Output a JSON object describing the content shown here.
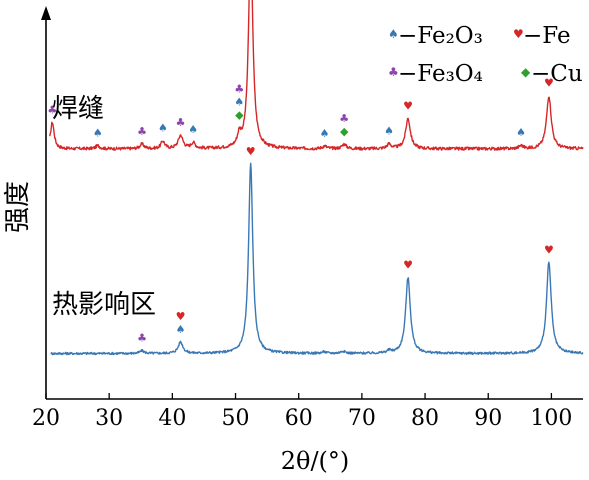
{
  "chart_data": {
    "type": "line",
    "xlabel": "2θ/(°)",
    "ylabel": "强度",
    "xlim": [
      20,
      105
    ],
    "xticks": [
      20,
      30,
      40,
      50,
      60,
      70,
      80,
      90,
      100
    ],
    "legend": {
      "placement": "top-right",
      "entries": [
        {
          "phase": "fe2o3",
          "label": "−Fe₂O₃"
        },
        {
          "phase": "fe",
          "label": "−Fe"
        },
        {
          "phase": "fe3o4",
          "label": "−Fe₃O₄"
        },
        {
          "phase": "cu",
          "label": "−Cu"
        }
      ]
    },
    "phase_styles": {
      "fe2o3": {
        "symbol": "♠",
        "color": "#3a78b5"
      },
      "fe": {
        "symbol": "♥",
        "color": "#d62728"
      },
      "fe3o4": {
        "symbol": "♣",
        "color": "#8e44ad"
      },
      "cu": {
        "symbol": "◆",
        "color": "#2ca02c"
      }
    },
    "series": [
      {
        "name": "焊缝",
        "color": "#d62728",
        "baseline": 0.66,
        "noise": 0.004,
        "peaks": [
          {
            "x": 21.0,
            "h": 0.07,
            "w": 0.35
          },
          {
            "x": 28.2,
            "h": 0.008,
            "w": 0.4
          },
          {
            "x": 35.2,
            "h": 0.012,
            "w": 0.4
          },
          {
            "x": 38.5,
            "h": 0.02,
            "w": 0.35
          },
          {
            "x": 41.3,
            "h": 0.035,
            "w": 0.45
          },
          {
            "x": 43.3,
            "h": 0.015,
            "w": 0.4
          },
          {
            "x": 50.6,
            "h": 0.03,
            "w": 0.35
          },
          {
            "x": 52.4,
            "h": 0.55,
            "w": 0.4
          },
          {
            "x": 64.1,
            "h": 0.007,
            "w": 0.4
          },
          {
            "x": 67.2,
            "h": 0.012,
            "w": 0.4
          },
          {
            "x": 74.3,
            "h": 0.012,
            "w": 0.4
          },
          {
            "x": 77.3,
            "h": 0.08,
            "w": 0.45
          },
          {
            "x": 95.2,
            "h": 0.008,
            "w": 0.4
          },
          {
            "x": 99.6,
            "h": 0.14,
            "w": 0.45
          }
        ]
      },
      {
        "name": "热影响区",
        "color": "#3a78b5",
        "baseline": 0.12,
        "noise": 0.003,
        "peaks": [
          {
            "x": 35.2,
            "h": 0.007,
            "w": 0.4
          },
          {
            "x": 41.3,
            "h": 0.03,
            "w": 0.45
          },
          {
            "x": 52.4,
            "h": 0.5,
            "w": 0.4
          },
          {
            "x": 64.0,
            "h": 0.004,
            "w": 0.4
          },
          {
            "x": 67.0,
            "h": 0.006,
            "w": 0.4
          },
          {
            "x": 74.3,
            "h": 0.006,
            "w": 0.4
          },
          {
            "x": 77.3,
            "h": 0.2,
            "w": 0.45
          },
          {
            "x": 99.6,
            "h": 0.24,
            "w": 0.45
          }
        ]
      }
    ],
    "annotations": [
      {
        "series": 0,
        "x": 21.0,
        "stack": [
          "fe3o4"
        ]
      },
      {
        "series": 0,
        "x": 28.2,
        "stack": [
          "fe2o3"
        ]
      },
      {
        "series": 0,
        "x": 35.2,
        "stack": [
          "fe3o4"
        ]
      },
      {
        "series": 0,
        "x": 38.5,
        "stack": [
          "fe2o3"
        ]
      },
      {
        "series": 0,
        "x": 41.3,
        "stack": [
          "fe3o4"
        ]
      },
      {
        "series": 0,
        "x": 43.3,
        "stack": [
          "fe2o3"
        ]
      },
      {
        "series": 0,
        "x": 50.6,
        "stack": [
          "cu",
          "fe2o3",
          "fe3o4"
        ]
      },
      {
        "series": 0,
        "x": 52.4,
        "stack": [
          "fe"
        ]
      },
      {
        "series": 0,
        "x": 64.1,
        "stack": [
          "fe2o3"
        ]
      },
      {
        "series": 0,
        "x": 67.2,
        "stack": [
          "cu",
          "fe3o4"
        ]
      },
      {
        "series": 0,
        "x": 74.3,
        "stack": [
          "fe2o3"
        ]
      },
      {
        "series": 0,
        "x": 77.3,
        "stack": [
          "fe"
        ]
      },
      {
        "series": 0,
        "x": 95.2,
        "stack": [
          "fe2o3"
        ]
      },
      {
        "series": 0,
        "x": 99.6,
        "stack": [
          "fe"
        ]
      },
      {
        "series": 1,
        "x": 35.2,
        "stack": [
          "fe3o4"
        ]
      },
      {
        "series": 1,
        "x": 41.3,
        "stack": [
          "fe2o3",
          "fe"
        ]
      },
      {
        "series": 1,
        "x": 52.4,
        "stack": [
          "fe"
        ]
      },
      {
        "series": 1,
        "x": 77.3,
        "stack": [
          "fe"
        ]
      },
      {
        "series": 1,
        "x": 99.6,
        "stack": [
          "fe"
        ]
      }
    ]
  }
}
